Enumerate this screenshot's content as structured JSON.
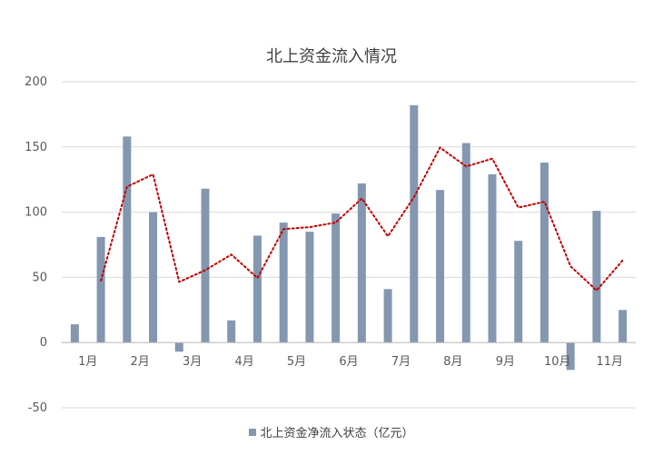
{
  "chart_data": {
    "type": "bar",
    "title": "北上资金流入情况",
    "legend_label": "北上资金净流入状态（亿元）",
    "legend_position": "bottom",
    "ylim": [
      -50,
      200
    ],
    "yticks": [
      "200",
      "150",
      "100",
      "50",
      "0",
      "-50"
    ],
    "ytick_values": [
      200,
      150,
      100,
      50,
      0,
      -50
    ],
    "grid": true,
    "month_labels": [
      "1月",
      "2月",
      "3月",
      "4月",
      "5月",
      "6月",
      "7月",
      "8月",
      "9月",
      "10月",
      "11月"
    ],
    "month_label_positions": [
      0,
      2,
      4,
      6,
      8,
      10,
      12,
      14,
      16,
      18,
      20
    ],
    "values": [
      14,
      81,
      158,
      100,
      -7,
      118,
      17,
      82,
      92,
      85,
      99,
      122,
      41,
      182,
      117,
      153,
      129,
      78,
      138,
      -21,
      101,
      25
    ],
    "trend_line": {
      "style": "dotted",
      "values": [
        null,
        47.5,
        119.5,
        129,
        46.5,
        55.5,
        67.5,
        49.5,
        87,
        88.5,
        92,
        110.5,
        81.5,
        111.5,
        149.5,
        135,
        141,
        103.5,
        108,
        58.5,
        40,
        63
      ]
    },
    "colors": {
      "bar": "#8497b0",
      "trend": "#c00000",
      "grid": "#d9d9d9",
      "text": "#595959",
      "title": "#404040"
    }
  }
}
